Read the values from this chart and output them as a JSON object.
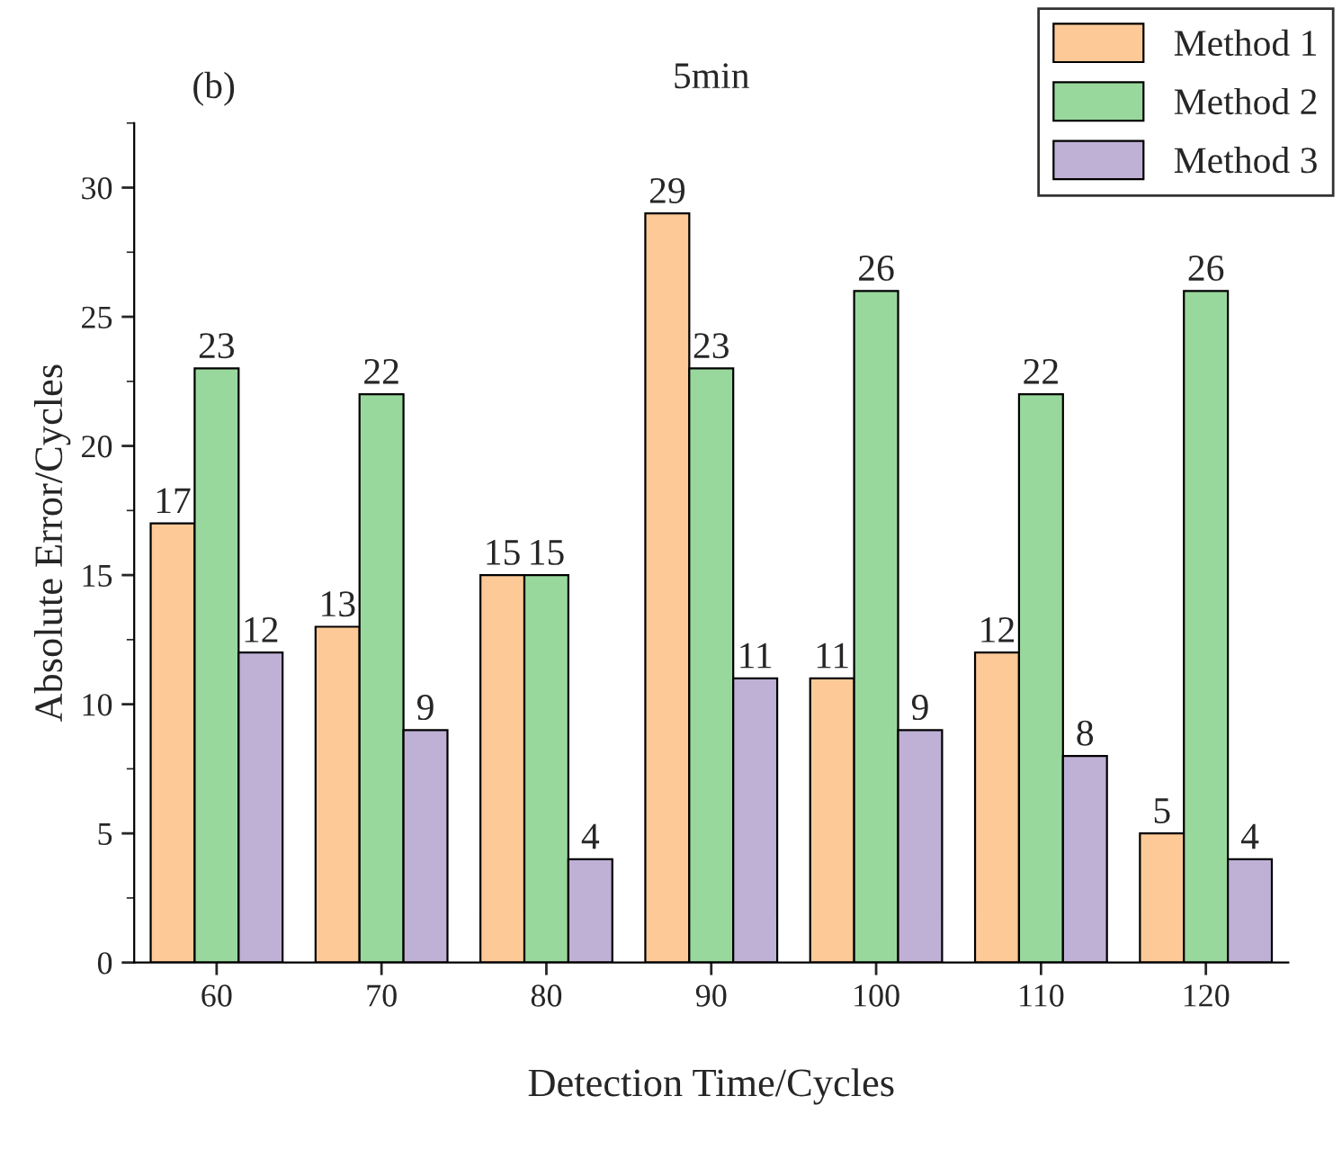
{
  "chart_data": {
    "type": "bar",
    "title": "5min",
    "xlabel": "Detection Time/Cycles",
    "ylabel": "Absolute Error/Cycles",
    "annotations": [
      "(b)"
    ],
    "categories": [
      "60",
      "70",
      "80",
      "90",
      "100",
      "110",
      "120"
    ],
    "series": [
      {
        "name": "Method 1",
        "color": "#fdc997",
        "values": [
          17,
          13,
          15,
          29,
          11,
          12,
          5
        ]
      },
      {
        "name": "Method 2",
        "color": "#99d89d",
        "values": [
          23,
          22,
          15,
          23,
          26,
          22,
          26
        ]
      },
      {
        "name": "Method 3",
        "color": "#bfb0d6",
        "values": [
          12,
          9,
          4,
          11,
          9,
          8,
          4
        ]
      }
    ],
    "ylim": [
      0,
      32.5
    ],
    "yticks": [
      0,
      5,
      10,
      15,
      20,
      25,
      30
    ],
    "data_labels": true,
    "grid": false,
    "legend": "top right"
  }
}
